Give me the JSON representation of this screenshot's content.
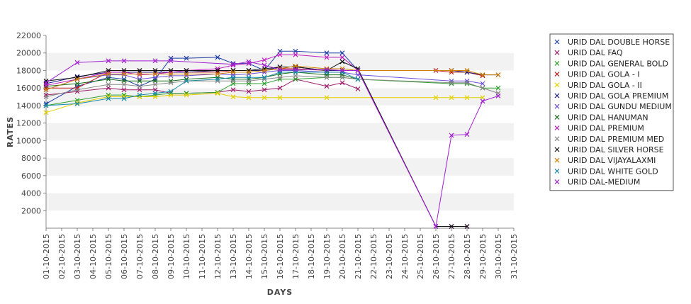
{
  "chart_data": {
    "type": "line",
    "title": "",
    "xlabel": "DAYS",
    "ylabel": "RATES",
    "ylim": [
      0,
      22000
    ],
    "yticks": [
      2000,
      4000,
      6000,
      8000,
      10000,
      12000,
      14000,
      16000,
      18000,
      20000,
      22000
    ],
    "grid": "alternating horizontal bands",
    "legend_position": "right",
    "x": [
      "01-10-2015",
      "02-10-2015",
      "03-10-2015",
      "04-10-2015",
      "05-10-2015",
      "06-10-2015",
      "07-10-2015",
      "08-10-2015",
      "09-10-2015",
      "10-10-2015",
      "11-10-2015",
      "12-10-2015",
      "13-10-2015",
      "14-10-2015",
      "15-10-2015",
      "16-10-2015",
      "17-10-2015",
      "18-10-2015",
      "19-10-2015",
      "20-10-2015",
      "21-10-2015",
      "22-10-2015",
      "23-10-2015",
      "24-10-2015",
      "25-10-2015",
      "26-10-2015",
      "27-10-2015",
      "28-10-2015",
      "29-10-2015",
      "30-10-2015",
      "31-10-2015"
    ],
    "series": [
      {
        "name": "URID DAL DOUBLE HORSE",
        "color": "#1f3fa6",
        "points": [
          [
            0,
            14200
          ],
          [
            2,
            16200
          ],
          [
            4,
            17200
          ],
          [
            5,
            17000
          ],
          [
            6,
            16200
          ],
          [
            7,
            17000
          ],
          [
            8,
            19400
          ],
          [
            9,
            19400
          ],
          [
            11,
            19500
          ],
          [
            12,
            18800
          ],
          [
            13,
            18800
          ],
          [
            14,
            18000
          ],
          [
            15,
            20200
          ],
          [
            16,
            20200
          ],
          [
            18,
            20000
          ],
          [
            19,
            20000
          ],
          [
            20,
            18000
          ]
        ]
      },
      {
        "name": "URID DAL FAQ",
        "color": "#a0206e",
        "points": [
          [
            0,
            15200
          ],
          [
            2,
            15600
          ],
          [
            4,
            16000
          ],
          [
            5,
            15800
          ],
          [
            6,
            15800
          ],
          [
            7,
            15800
          ],
          [
            8,
            15400
          ],
          [
            9,
            15400
          ],
          [
            11,
            15500
          ],
          [
            12,
            15800
          ],
          [
            13,
            15600
          ],
          [
            14,
            15800
          ],
          [
            15,
            16000
          ],
          [
            16,
            17000
          ],
          [
            18,
            16200
          ],
          [
            19,
            16600
          ],
          [
            20,
            15900
          ]
        ]
      },
      {
        "name": "URID DAL GENERAL BOLD",
        "color": "#2ea02e",
        "points": [
          [
            0,
            14000
          ],
          [
            2,
            14600
          ],
          [
            4,
            15200
          ],
          [
            5,
            15200
          ],
          [
            6,
            15000
          ],
          [
            7,
            15200
          ],
          [
            8,
            15400
          ],
          [
            9,
            15400
          ],
          [
            11,
            15500
          ],
          [
            12,
            16500
          ],
          [
            13,
            16500
          ],
          [
            14,
            16500
          ],
          [
            15,
            17000
          ],
          [
            16,
            17000
          ],
          [
            18,
            17200
          ],
          [
            19,
            17200
          ],
          [
            20,
            17000
          ],
          [
            26,
            16500
          ],
          [
            27,
            16500
          ],
          [
            28,
            16000
          ],
          [
            29,
            16000
          ]
        ]
      },
      {
        "name": "URID DAL GOLA - I",
        "color": "#c01a1a",
        "points": [
          [
            0,
            16000
          ],
          [
            2,
            16000
          ],
          [
            4,
            17800
          ],
          [
            5,
            17800
          ],
          [
            6,
            17800
          ],
          [
            7,
            17800
          ],
          [
            8,
            17800
          ],
          [
            9,
            17800
          ],
          [
            11,
            17800
          ],
          [
            12,
            18000
          ],
          [
            13,
            18000
          ],
          [
            14,
            18000
          ],
          [
            15,
            18200
          ],
          [
            16,
            18200
          ],
          [
            18,
            18000
          ],
          [
            19,
            18000
          ],
          [
            20,
            18000
          ],
          [
            25,
            18000
          ],
          [
            26,
            17800
          ],
          [
            27,
            17800
          ],
          [
            28,
            17400
          ]
        ]
      },
      {
        "name": "URID DAL GOLA - II",
        "color": "#e6d000",
        "points": [
          [
            0,
            13200
          ],
          [
            2,
            14300
          ],
          [
            4,
            15000
          ],
          [
            5,
            15000
          ],
          [
            6,
            15000
          ],
          [
            7,
            15000
          ],
          [
            8,
            15200
          ],
          [
            9,
            15200
          ],
          [
            11,
            15400
          ],
          [
            12,
            15000
          ],
          [
            13,
            14900
          ],
          [
            14,
            14900
          ],
          [
            15,
            14900
          ],
          [
            18,
            14900
          ],
          [
            25,
            14900
          ],
          [
            26,
            14900
          ],
          [
            27,
            14900
          ],
          [
            28,
            14900
          ]
        ]
      },
      {
        "name": "URID DAL GOLA PREMIUM",
        "color": "#1a1a80",
        "points": [
          [
            0,
            16500
          ],
          [
            2,
            17300
          ],
          [
            4,
            17800
          ],
          [
            5,
            17800
          ],
          [
            6,
            17800
          ],
          [
            7,
            17800
          ],
          [
            8,
            17800
          ],
          [
            9,
            17800
          ],
          [
            11,
            18000
          ],
          [
            12,
            18000
          ],
          [
            13,
            18000
          ],
          [
            14,
            18000
          ],
          [
            15,
            18400
          ],
          [
            16,
            18400
          ],
          [
            18,
            18000
          ],
          [
            19,
            18000
          ],
          [
            20,
            18000
          ],
          [
            26,
            18000
          ],
          [
            27,
            17800
          ],
          [
            28,
            17500
          ],
          [
            29,
            17500
          ]
        ]
      },
      {
        "name": "URID DAL GUNDU MEDIUM",
        "color": "#6a4fd8",
        "points": [
          [
            0,
            15800
          ],
          [
            2,
            17000
          ],
          [
            4,
            17500
          ],
          [
            5,
            17500
          ],
          [
            6,
            17000
          ],
          [
            7,
            17200
          ],
          [
            8,
            17400
          ],
          [
            9,
            17400
          ],
          [
            11,
            17600
          ],
          [
            12,
            17500
          ],
          [
            13,
            17600
          ],
          [
            14,
            17800
          ],
          [
            15,
            18000
          ],
          [
            16,
            18000
          ],
          [
            18,
            17800
          ],
          [
            19,
            17800
          ],
          [
            20,
            17500
          ],
          [
            26,
            16800
          ],
          [
            27,
            16800
          ],
          [
            28,
            16500
          ]
        ]
      },
      {
        "name": "URID DAL HANUMAN",
        "color": "#1a6e1a",
        "points": [
          [
            0,
            16200
          ],
          [
            2,
            16500
          ],
          [
            4,
            17000
          ],
          [
            5,
            16800
          ],
          [
            6,
            16800
          ],
          [
            7,
            16800
          ],
          [
            8,
            16800
          ],
          [
            9,
            17000
          ],
          [
            11,
            17200
          ],
          [
            12,
            17000
          ],
          [
            13,
            17000
          ],
          [
            14,
            17200
          ],
          [
            15,
            17600
          ],
          [
            16,
            17800
          ],
          [
            18,
            17500
          ],
          [
            19,
            17500
          ],
          [
            20,
            17000
          ]
        ]
      },
      {
        "name": "URID DAL PREMIUM",
        "color": "#c020c0",
        "points": [
          [
            0,
            16300
          ],
          [
            2,
            17000
          ],
          [
            4,
            17800
          ],
          [
            5,
            17800
          ],
          [
            6,
            17500
          ],
          [
            7,
            17600
          ],
          [
            8,
            17800
          ],
          [
            9,
            18000
          ],
          [
            11,
            18200
          ],
          [
            12,
            18600
          ],
          [
            13,
            18800
          ],
          [
            14,
            19200
          ],
          [
            15,
            19800
          ],
          [
            16,
            19800
          ],
          [
            18,
            19500
          ],
          [
            19,
            19500
          ],
          [
            20,
            18000
          ],
          [
            25,
            200
          ],
          [
            26,
            200
          ],
          [
            27,
            200
          ]
        ]
      },
      {
        "name": "URID DAL PREMIUM MED",
        "color": "#888888",
        "points": [
          [
            0,
            15000
          ],
          [
            2,
            15800
          ],
          [
            4,
            16400
          ],
          [
            5,
            16400
          ],
          [
            6,
            16200
          ],
          [
            7,
            16400
          ],
          [
            8,
            16600
          ],
          [
            9,
            16800
          ],
          [
            11,
            16800
          ],
          [
            12,
            16800
          ],
          [
            13,
            16800
          ],
          [
            14,
            17000
          ],
          [
            15,
            17200
          ],
          [
            16,
            17400
          ],
          [
            18,
            17200
          ],
          [
            19,
            17200
          ],
          [
            20,
            17000
          ],
          [
            26,
            16600
          ],
          [
            27,
            16600
          ],
          [
            28,
            16000
          ],
          [
            29,
            15400
          ]
        ]
      },
      {
        "name": "URID DAL SILVER HORSE",
        "color": "#111111",
        "points": [
          [
            0,
            16800
          ],
          [
            2,
            17200
          ],
          [
            4,
            18000
          ],
          [
            5,
            18000
          ],
          [
            6,
            18000
          ],
          [
            7,
            18000
          ],
          [
            8,
            18000
          ],
          [
            9,
            18000
          ],
          [
            11,
            18000
          ],
          [
            12,
            18000
          ],
          [
            13,
            18000
          ],
          [
            14,
            18200
          ],
          [
            15,
            18400
          ],
          [
            16,
            18400
          ],
          [
            18,
            18000
          ],
          [
            19,
            19000
          ],
          [
            20,
            18200
          ],
          [
            25,
            200
          ],
          [
            26,
            200
          ],
          [
            27,
            200
          ]
        ]
      },
      {
        "name": "URID DAL VIJAYALAXMI",
        "color": "#d08000",
        "points": [
          [
            0,
            15800
          ],
          [
            2,
            17000
          ],
          [
            4,
            17600
          ],
          [
            5,
            17600
          ],
          [
            6,
            17600
          ],
          [
            7,
            17600
          ],
          [
            8,
            17600
          ],
          [
            9,
            17600
          ],
          [
            11,
            17600
          ],
          [
            12,
            17800
          ],
          [
            13,
            17800
          ],
          [
            14,
            18000
          ],
          [
            15,
            18200
          ],
          [
            16,
            18500
          ],
          [
            18,
            18200
          ],
          [
            19,
            18200
          ],
          [
            20,
            18000
          ],
          [
            26,
            18000
          ],
          [
            27,
            18000
          ],
          [
            28,
            17500
          ],
          [
            29,
            17500
          ]
        ]
      },
      {
        "name": "URID DAL WHITE GOLD",
        "color": "#1a8aa8",
        "points": [
          [
            0,
            14000
          ],
          [
            2,
            14200
          ],
          [
            4,
            14800
          ],
          [
            5,
            14800
          ],
          [
            6,
            15200
          ],
          [
            7,
            15400
          ],
          [
            8,
            15600
          ],
          [
            9,
            16800
          ],
          [
            11,
            17000
          ],
          [
            12,
            17200
          ],
          [
            13,
            17200
          ],
          [
            14,
            17200
          ],
          [
            15,
            17800
          ],
          [
            16,
            17800
          ],
          [
            18,
            17800
          ],
          [
            19,
            17800
          ],
          [
            20,
            17000
          ]
        ]
      },
      {
        "name": "URID DAL-MEDIUM",
        "color": "#a020d0",
        "points": [
          [
            0,
            16600
          ],
          [
            2,
            18900
          ],
          [
            4,
            19100
          ],
          [
            5,
            19100
          ],
          [
            7,
            19100
          ],
          [
            8,
            19100
          ],
          [
            12,
            18700
          ],
          [
            13,
            19000
          ],
          [
            14,
            18600
          ],
          [
            15,
            18100
          ],
          [
            16,
            18100
          ],
          [
            18,
            18100
          ],
          [
            19,
            18000
          ],
          [
            20,
            18000
          ],
          [
            25,
            200
          ],
          [
            26,
            10600
          ],
          [
            27,
            10700
          ],
          [
            28,
            14500
          ],
          [
            29,
            15100
          ]
        ]
      }
    ]
  }
}
